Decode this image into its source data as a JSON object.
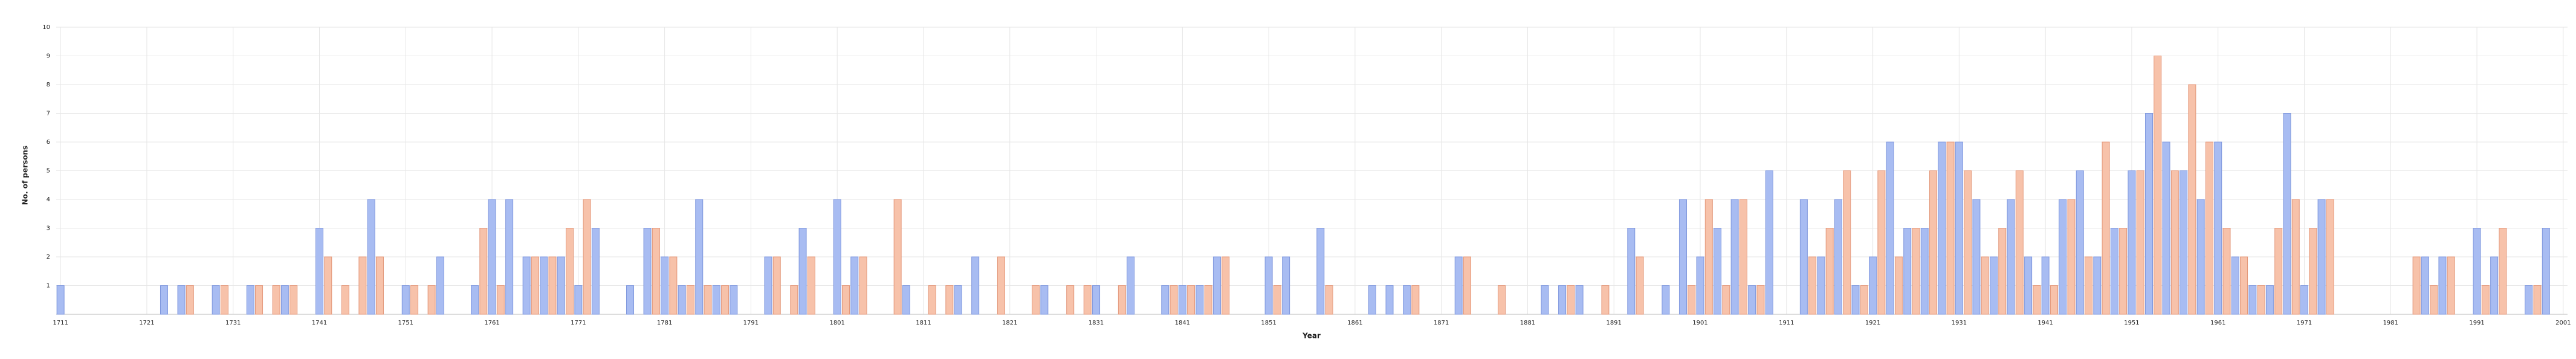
{
  "chart_data": {
    "type": "bar",
    "x_label": "Year",
    "y_label": "No. of persons",
    "categories": [
      "1711",
      null,
      null,
      null,
      null,
      null,
      null,
      null,
      null,
      null,
      "1721",
      null,
      null,
      null,
      null,
      null,
      null,
      null,
      null,
      null,
      "1731",
      null,
      null,
      null,
      null,
      null,
      null,
      null,
      null,
      null,
      "1741",
      null,
      null,
      null,
      null,
      null,
      null,
      null,
      null,
      null,
      "1751",
      null,
      null,
      null,
      null,
      null,
      null,
      null,
      null,
      null,
      "1761",
      null,
      null,
      null,
      null,
      null,
      null,
      null,
      null,
      null,
      "1771",
      null,
      null,
      null,
      null,
      null,
      null,
      null,
      null,
      null,
      "1781",
      null,
      null,
      null,
      null,
      null,
      null,
      null,
      null,
      null,
      "1791",
      null,
      null,
      null,
      null,
      null,
      null,
      null,
      null,
      null,
      "1801",
      null,
      null,
      null,
      null,
      null,
      null,
      null,
      null,
      null,
      "1811",
      null,
      null,
      null,
      null,
      null,
      null,
      null,
      null,
      null,
      "1821",
      null,
      null,
      null,
      null,
      null,
      null,
      null,
      null,
      null,
      "1831",
      null,
      null,
      null,
      null,
      null,
      null,
      null,
      null,
      null,
      "1841",
      null,
      null,
      null,
      null,
      null,
      null,
      null,
      null,
      null,
      "1851",
      null,
      null,
      null,
      null,
      null,
      null,
      null,
      null,
      null,
      "1861",
      null,
      null,
      null,
      null,
      null,
      null,
      null,
      null,
      null,
      "1871",
      null,
      null,
      null,
      null,
      null,
      null,
      null,
      null,
      null,
      "1881",
      null,
      null,
      null,
      null,
      null,
      null,
      null,
      null,
      null,
      "1891",
      null,
      null,
      null,
      null,
      null,
      null,
      null,
      null,
      null,
      "1901",
      null,
      null,
      null,
      null,
      null,
      null,
      null,
      null,
      null,
      "1911",
      null,
      null,
      null,
      null,
      null,
      null,
      null,
      null,
      null,
      "1921",
      null,
      null,
      null,
      null,
      null,
      null,
      null,
      null,
      null,
      "1931",
      null,
      null,
      null,
      null,
      null,
      null,
      null,
      null,
      null,
      "1941",
      null,
      null,
      null,
      null,
      null,
      null,
      null,
      null,
      null,
      "1951",
      null,
      null,
      null,
      null,
      null,
      null,
      null,
      null,
      null,
      "1961",
      null,
      null,
      null,
      null,
      null,
      null,
      null,
      null,
      null,
      "1971",
      null,
      null,
      null,
      null,
      null,
      null,
      null,
      null,
      null,
      "1981",
      null,
      null,
      null,
      null,
      null,
      null,
      null,
      null,
      null,
      "1991",
      null,
      null,
      null,
      null,
      null,
      null,
      null,
      null,
      null,
      "2001"
    ],
    "values": [
      1,
      0,
      0,
      0,
      0,
      0,
      0,
      0,
      0,
      0,
      0,
      0,
      1,
      0,
      1,
      1,
      0,
      0,
      1,
      1,
      0,
      0,
      1,
      1,
      0,
      1,
      1,
      1,
      0,
      0,
      3,
      2,
      0,
      1,
      0,
      2,
      4,
      2,
      0,
      0,
      1,
      1,
      0,
      1,
      2,
      0,
      0,
      0,
      1,
      3,
      4,
      1,
      4,
      0,
      2,
      2,
      2,
      2,
      2,
      3,
      1,
      4,
      3,
      0,
      0,
      0,
      1,
      0,
      3,
      3,
      2,
      2,
      1,
      1,
      4,
      1,
      1,
      1,
      1,
      0,
      0,
      0,
      2,
      2,
      0,
      1,
      3,
      2,
      0,
      0,
      4,
      1,
      2,
      2,
      0,
      0,
      0,
      4,
      1,
      0,
      0,
      1,
      0,
      1,
      1,
      0,
      2,
      0,
      0,
      2,
      0,
      0,
      0,
      1,
      1,
      0,
      0,
      1,
      0,
      1,
      1,
      0,
      0,
      1,
      2,
      0,
      0,
      0,
      1,
      1,
      1,
      1,
      1,
      1,
      2,
      2,
      0,
      0,
      0,
      0,
      2,
      1,
      2,
      0,
      0,
      0,
      3,
      1,
      0,
      0,
      0,
      0,
      1,
      0,
      1,
      0,
      1,
      1,
      0,
      0,
      0,
      0,
      2,
      2,
      0,
      0,
      0,
      1,
      0,
      0,
      0,
      0,
      1,
      0,
      1,
      1,
      1,
      0,
      0,
      1,
      0,
      0,
      3,
      2,
      0,
      0,
      1,
      0,
      4,
      1,
      2,
      4,
      3,
      1,
      4,
      4,
      1,
      1,
      5,
      0,
      0,
      0,
      4,
      2,
      2,
      3,
      4,
      5,
      1,
      1,
      2,
      5,
      6,
      2,
      3,
      3,
      3,
      5,
      6,
      6,
      6,
      5,
      4,
      2,
      2,
      3,
      4,
      5,
      2,
      1,
      2,
      1,
      4,
      4,
      5,
      2,
      2,
      6,
      3,
      3,
      5,
      5,
      7,
      9,
      6,
      5,
      5,
      8,
      4,
      6,
      6,
      3,
      2,
      2,
      1,
      1,
      1,
      3,
      7,
      4,
      1,
      3,
      4,
      4,
      0,
      0,
      0,
      0,
      0,
      0,
      0,
      0,
      0,
      2,
      2,
      1,
      2,
      2,
      0,
      0,
      3,
      1,
      2,
      3,
      0,
      0,
      1,
      1,
      3,
      0,
      0
    ],
    "colors": [
      "#a8bcf2",
      "#f7c2aa"
    ],
    "ylim": [
      0,
      10
    ],
    "yticks": [
      1,
      2,
      3,
      4,
      5,
      6,
      7,
      8,
      9,
      10
    ],
    "grid": true
  }
}
